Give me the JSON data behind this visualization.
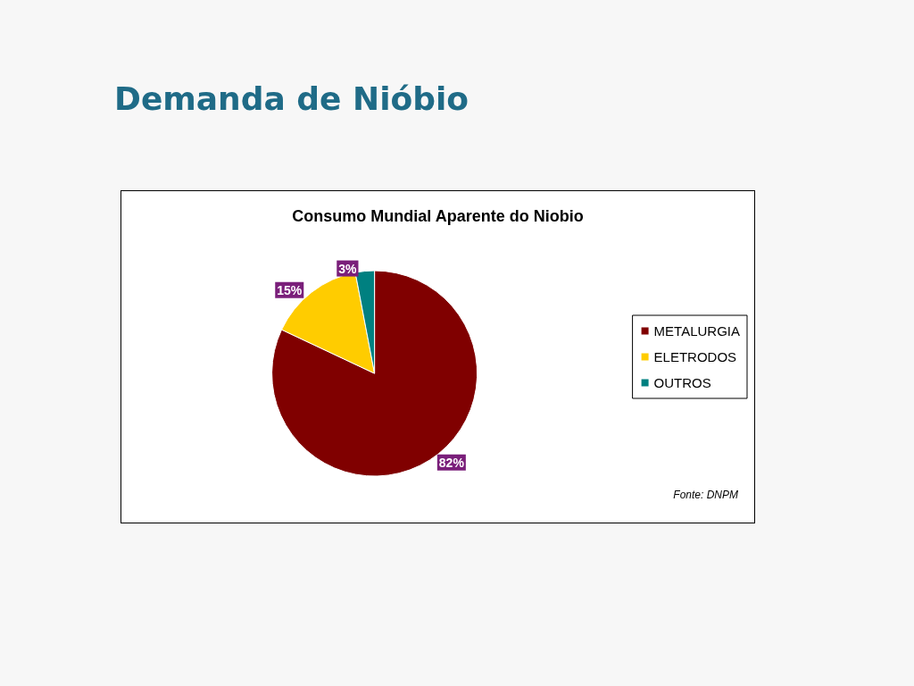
{
  "chart_data": {
    "type": "pie",
    "title": "Demanda de Nióbio",
    "subtitle": "Consumo Mundial Aparente do Niobio",
    "categories": [
      "METALURGIA",
      "ELETRODOS",
      "OUTROS"
    ],
    "values": [
      82,
      15,
      3
    ],
    "colors": [
      "#800000",
      "#ffcc00",
      "#008080"
    ],
    "value_labels": [
      "82%",
      "15%",
      "3%"
    ],
    "legend": "right",
    "annotations": [
      "Fonte: DNPM"
    ]
  }
}
